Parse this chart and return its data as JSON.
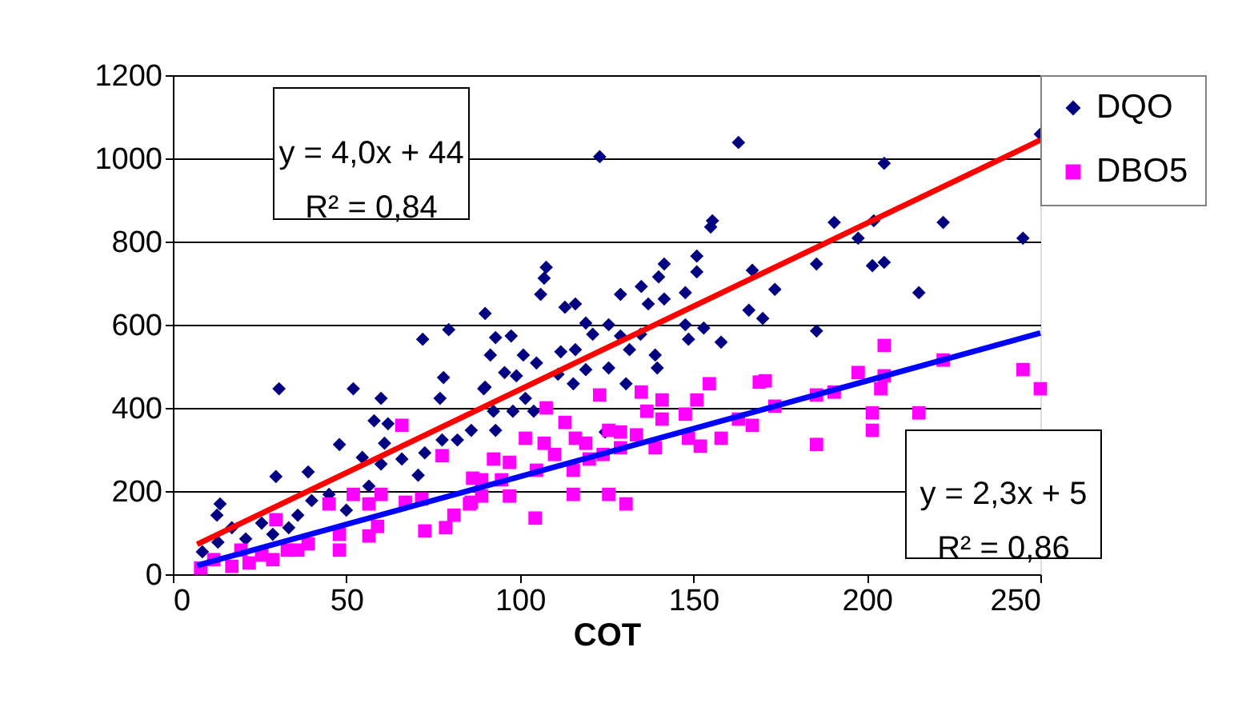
{
  "chart_data": {
    "type": "scatter",
    "xlabel": "COT",
    "xlim": [
      0,
      250
    ],
    "xticks": [
      0,
      50,
      100,
      150,
      200,
      250
    ],
    "ylim": [
      0,
      1200
    ],
    "yticks": [
      0,
      200,
      400,
      600,
      800,
      1000,
      1200
    ],
    "grid": "y",
    "legend": "right",
    "annotations": [
      "y = 4,0x + 44\nR² = 0,84",
      "y = 2,3x + 5\nR² = 0,86"
    ],
    "series": [
      {
        "name": "DQO",
        "color": "#000080",
        "marker": "diamond",
        "x": [
          72,
          79.5,
          90,
          30.6,
          52,
          60,
          78,
          77,
          89.6,
          58,
          62,
          86,
          48,
          54.6,
          61,
          66,
          72.6,
          70.7,
          77.6,
          82,
          29.7,
          39,
          60,
          56.5,
          13.6,
          12.7,
          40,
          45,
          50,
          36,
          25.6,
          17,
          33.4,
          13,
          21,
          8.5,
          28.8,
          123,
          163,
          155,
          155.5,
          107.6,
          107,
          106,
          113,
          116,
          141.6,
          140,
          151,
          151,
          135,
          129,
          137,
          141.6,
          147.7,
          167,
          166,
          170,
          147.7,
          153,
          158,
          148.6,
          93,
          97.5,
          91.5,
          101,
          104.8,
          95.6,
          99,
          90,
          111.8,
          116,
          119,
          121,
          125.6,
          129,
          131.6,
          134.8,
          139,
          139.6,
          111,
          119,
          125.6,
          115.4,
          130.6,
          101.6,
          92.4,
          93,
          98,
          104,
          124.6,
          250,
          205,
          190.6,
          202,
          197.5,
          222,
          245,
          185.5,
          201.6,
          205,
          173.5,
          215,
          185.5
        ],
        "values": [
          565,
          588,
          627,
          446,
          446,
          423,
          473,
          423,
          446,
          369,
          362,
          346,
          312,
          281,
          315,
          277,
          292,
          238,
          323,
          323,
          235,
          246,
          265,
          212,
          169,
          142,
          177,
          192,
          154,
          142,
          123,
          112,
          112,
          77,
          85,
          54,
          96,
          1004,
          1038,
          835,
          850,
          738,
          712,
          673,
          642,
          650,
          746,
          715,
          765,
          727,
          692,
          673,
          650,
          662,
          677,
          731,
          635,
          615,
          600,
          592,
          558,
          565,
          569,
          573,
          527,
          527,
          508,
          485,
          477,
          450,
          535,
          540,
          604,
          577,
          600,
          573,
          540,
          577,
          527,
          496,
          481,
          492,
          496,
          458,
          458,
          423,
          392,
          346,
          392,
          392,
          342,
          1058,
          988,
          846,
          850,
          808,
          846,
          808,
          746,
          742,
          750,
          685,
          677,
          585
        ]
      },
      {
        "name": "DBO5",
        "color": "#ff00ff",
        "marker": "square",
        "x": [
          66,
          77.6,
          52,
          60,
          56.5,
          59,
          48,
          48,
          56.5,
          67,
          71.7,
          72.6,
          78.6,
          81,
          86,
          89,
          29.7,
          45,
          39,
          33,
          25.6,
          19.6,
          11.8,
          8,
          22,
          17,
          28.8,
          36,
          123,
          135,
          141,
          154.6,
          151,
          169,
          136.6,
          141,
          147.7,
          125.6,
          129,
          133.6,
          139,
          148.6,
          152,
          158,
          163,
          167,
          107.6,
          113,
          116,
          119,
          107,
          101.6,
          110,
          120,
          124,
          129,
          92.4,
          97,
          86.4,
          94.7,
          104.8,
          115.4,
          89,
          97,
          115.4,
          125.6,
          130.6,
          104.4,
          85.5,
          205,
          197.5,
          205,
          204,
          170.7,
          222,
          245,
          250,
          190.6,
          185.5,
          173.5,
          201.6,
          201.6,
          215,
          185.5
        ],
        "values": [
          358,
          285,
          192,
          192,
          169,
          115,
          96,
          58,
          92,
          173,
          181,
          104,
          112,
          142,
          173,
          227,
          131,
          169,
          73,
          58,
          46,
          58,
          35,
          15,
          27,
          19,
          35,
          58,
          431,
          438,
          419,
          458,
          419,
          462,
          392,
          373,
          385,
          346,
          342,
          335,
          304,
          327,
          308,
          327,
          373,
          358,
          400,
          365,
          327,
          315,
          315,
          327,
          288,
          277,
          288,
          304,
          277,
          269,
          231,
          227,
          250,
          250,
          188,
          188,
          192,
          192,
          169,
          135,
          169,
          550,
          485,
          477,
          446,
          465,
          515,
          492,
          446,
          438,
          431,
          404,
          388,
          346,
          388,
          312
        ]
      },
      {
        "type": "line",
        "color": "#ff0000",
        "x": [
          7,
          250
        ],
        "values": [
          72,
          1044
        ]
      },
      {
        "type": "line",
        "color": "#0000ff",
        "x": [
          7,
          250
        ],
        "values": [
          21,
          580
        ]
      }
    ]
  }
}
